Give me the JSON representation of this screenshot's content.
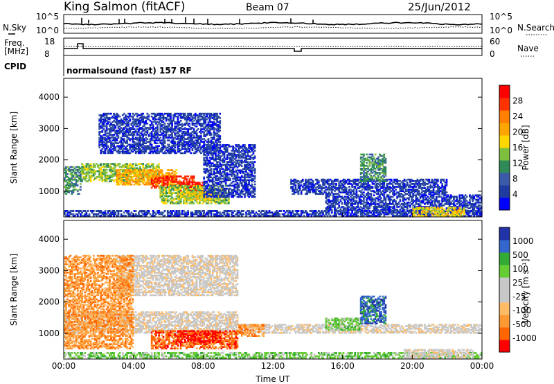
{
  "header": {
    "station": "King Salmon (fitACF)",
    "beam": "Beam 07",
    "date": "25/Jun/2012"
  },
  "top_panels": {
    "nsky_label": "N.Sky",
    "nsearch_label": "N.Search",
    "noise_ticks_left": [
      "10^5",
      "10^0"
    ],
    "noise_ticks_right": [
      "10^5",
      "10^0"
    ],
    "freq_label_line1": "Freq.",
    "freq_label_line2": "[MHz]",
    "freq_ticks": [
      "18",
      "8"
    ],
    "nave_label": "Nave",
    "nave_ticks": [
      "60",
      "0"
    ],
    "cpid_label": "CPID",
    "cpid_text": "normalsound (fast) 157 RF"
  },
  "chart_data": [
    {
      "type": "heatmap",
      "panel": "power",
      "ylabel": "Slant Range [km]",
      "xlabel": "",
      "y_ticks": [
        "4000",
        "3000",
        "2000",
        "1000"
      ],
      "ylim": [
        180,
        4600
      ],
      "xlim_hours": [
        0,
        24
      ],
      "colorbar_label": "Power [dB]",
      "colorbar_ticks": [
        "28",
        "24",
        "20",
        "16",
        "12",
        "8",
        "4"
      ],
      "colors": [
        "#0000ff",
        "#1e3ca0",
        "#3c5aaa",
        "#2e8b57",
        "#7fbf3f",
        "#ffd700",
        "#ffa500",
        "#ff7f00",
        "#ff3300",
        "#ff0000"
      ],
      "regions": [
        {
          "t0": 0.0,
          "t1": 1.0,
          "r0": 900,
          "r1": 1800,
          "level": 3
        },
        {
          "t0": 1.0,
          "t1": 5.5,
          "r0": 1300,
          "r1": 1900,
          "level": 4
        },
        {
          "t0": 3.0,
          "t1": 6.5,
          "r0": 1200,
          "r1": 1700,
          "level": 6
        },
        {
          "t0": 5.0,
          "t1": 7.5,
          "r0": 1100,
          "r1": 1500,
          "level": 8
        },
        {
          "t0": 6.5,
          "t1": 8.0,
          "r0": 1000,
          "r1": 1300,
          "level": 9
        },
        {
          "t0": 5.5,
          "t1": 9.5,
          "r0": 600,
          "r1": 1200,
          "level": 4
        },
        {
          "t0": 6.5,
          "t1": 8.5,
          "r0": 700,
          "r1": 1000,
          "level": 5
        },
        {
          "t0": 2.0,
          "t1": 9.0,
          "r0": 2200,
          "r1": 3500,
          "level": 1
        },
        {
          "t0": 8.0,
          "t1": 11.0,
          "r0": 800,
          "r1": 2500,
          "level": 1
        },
        {
          "t0": 13.0,
          "t1": 22.0,
          "r0": 900,
          "r1": 1400,
          "level": 1
        },
        {
          "t0": 15.0,
          "t1": 24.0,
          "r0": 300,
          "r1": 900,
          "level": 1
        },
        {
          "t0": 17.0,
          "t1": 18.5,
          "r0": 1300,
          "r1": 2200,
          "level": 3
        },
        {
          "t0": 0.0,
          "t1": 24.0,
          "r0": 200,
          "r1": 400,
          "level": 1
        },
        {
          "t0": 20.0,
          "t1": 23.0,
          "r0": 200,
          "r1": 500,
          "level": 5
        }
      ]
    },
    {
      "type": "heatmap",
      "panel": "velocity",
      "ylabel": "Slant Range [km]",
      "xlabel": "Time UT",
      "y_ticks": [
        "4000",
        "3000",
        "2000",
        "1000"
      ],
      "ylim": [
        180,
        4600
      ],
      "xlim_hours": [
        0,
        24
      ],
      "x_ticks": [
        "00:00",
        "04:00",
        "08:00",
        "12:00",
        "16:00",
        "20:00",
        "00:00"
      ],
      "colorbar_label": "Velocity [m s⁻¹]",
      "colorbar_ticks": [
        "1000",
        "500",
        "100",
        "25",
        "-25",
        "-100",
        "-500",
        "-1000"
      ],
      "colors": [
        "#ff0000",
        "#ff6600",
        "#ff9933",
        "#ffbb66",
        "#c8c8c8",
        "#c8c8c8",
        "#66cc33",
        "#33aa33",
        "#3366cc",
        "#2233aa"
      ],
      "regions": [
        {
          "t0": 0.0,
          "t1": 10.0,
          "r0": 1000,
          "r1": 1700,
          "level": 4
        },
        {
          "t0": 10.0,
          "t1": 24.0,
          "r0": 1000,
          "r1": 1300,
          "level": 4
        },
        {
          "t0": 5.0,
          "t1": 10.0,
          "r0": 500,
          "r1": 1100,
          "level": 1
        },
        {
          "t0": 6.5,
          "t1": 9.0,
          "r0": 700,
          "r1": 1100,
          "level": 0
        },
        {
          "t0": 10.0,
          "t1": 11.5,
          "r0": 900,
          "r1": 1300,
          "level": 2
        },
        {
          "t0": 3.0,
          "t1": 10.0,
          "r0": 2200,
          "r1": 3500,
          "level": 4
        },
        {
          "t0": 0.0,
          "t1": 24.0,
          "r0": 200,
          "r1": 400,
          "level": 6
        },
        {
          "t0": 19.5,
          "t1": 23.5,
          "r0": 200,
          "r1": 500,
          "level": 4
        },
        {
          "t0": 17.0,
          "t1": 18.5,
          "r0": 1300,
          "r1": 2200,
          "level": 8
        },
        {
          "t0": 15.0,
          "t1": 17.0,
          "r0": 1100,
          "r1": 1500,
          "level": 6
        },
        {
          "t0": 0.0,
          "t1": 4.0,
          "r0": 500,
          "r1": 3500,
          "level": 2
        }
      ]
    }
  ]
}
